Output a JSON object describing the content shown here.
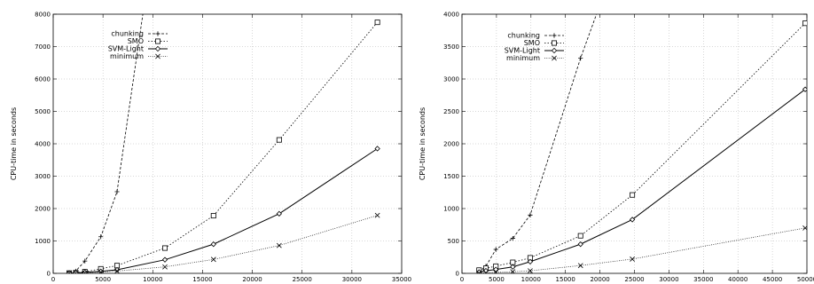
{
  "chart_data": [
    {
      "type": "line",
      "title": "",
      "xlabel": "",
      "ylabel": "CPU-time in seconds",
      "xlim": [
        0,
        35000
      ],
      "ylim": [
        0,
        8000
      ],
      "xticks": [
        0,
        5000,
        10000,
        15000,
        20000,
        25000,
        30000,
        35000
      ],
      "yticks": [
        0,
        1000,
        2000,
        3000,
        4000,
        5000,
        6000,
        7000,
        8000
      ],
      "grid": true,
      "legend_position": "top-left",
      "series": [
        {
          "name": "chunking",
          "marker": "plus",
          "dash": "dashed",
          "x": [
            1605,
            2265,
            3185,
            4781,
            6414,
            9000
          ],
          "y": [
            12,
            70,
            380,
            1130,
            2520,
            8000
          ]
        },
        {
          "name": "SMO",
          "marker": "square",
          "dash": "dotted",
          "x": [
            1605,
            2265,
            3185,
            4781,
            6414,
            11221,
            16101,
            22697,
            32562
          ],
          "y": [
            8,
            20,
            50,
            140,
            240,
            780,
            1780,
            4120,
            7750
          ]
        },
        {
          "name": "SVM-Light",
          "marker": "diamond",
          "dash": "solid",
          "x": [
            1605,
            2265,
            3185,
            4781,
            6414,
            11221,
            16101,
            22697,
            32562
          ],
          "y": [
            5,
            15,
            30,
            60,
            110,
            420,
            900,
            1840,
            3850
          ]
        },
        {
          "name": "minimum",
          "marker": "cross",
          "dash": "fine-dotted",
          "x": [
            1605,
            2265,
            3185,
            4781,
            6414,
            11221,
            16101,
            22697,
            32562
          ],
          "y": [
            3,
            8,
            15,
            35,
            70,
            200,
            430,
            860,
            1790
          ]
        }
      ]
    },
    {
      "type": "line",
      "title": "",
      "xlabel": "",
      "ylabel": "CPU-time in seconds",
      "xlim": [
        0,
        50000
      ],
      "ylim": [
        0,
        4000
      ],
      "xticks": [
        0,
        5000,
        10000,
        15000,
        20000,
        25000,
        30000,
        35000,
        40000,
        45000,
        50000
      ],
      "yticks": [
        0,
        500,
        1000,
        1500,
        2000,
        2500,
        3000,
        3500,
        4000
      ],
      "grid": true,
      "legend_position": "top-left",
      "series": [
        {
          "name": "chunking",
          "marker": "plus",
          "dash": "dashed",
          "x": [
            2477,
            3470,
            4912,
            7366,
            9888,
            17188,
            19500
          ],
          "y": [
            30,
            110,
            370,
            540,
            900,
            3320,
            4000
          ]
        },
        {
          "name": "SMO",
          "marker": "square",
          "dash": "dotted",
          "x": [
            2477,
            3470,
            4912,
            7366,
            9888,
            17188,
            24692,
            49749
          ],
          "y": [
            50,
            80,
            110,
            170,
            240,
            580,
            1210,
            3860
          ]
        },
        {
          "name": "SVM-Light",
          "marker": "diamond",
          "dash": "solid",
          "x": [
            2477,
            3470,
            4912,
            7366,
            9888,
            17188,
            24692,
            49749
          ],
          "y": [
            20,
            40,
            60,
            100,
            180,
            450,
            830,
            2840
          ]
        },
        {
          "name": "minimum",
          "marker": "cross",
          "dash": "fine-dotted",
          "x": [
            2477,
            3470,
            4912,
            7366,
            9888,
            17188,
            24692,
            49749
          ],
          "y": [
            5,
            8,
            15,
            25,
            40,
            120,
            220,
            700
          ]
        }
      ]
    }
  ]
}
